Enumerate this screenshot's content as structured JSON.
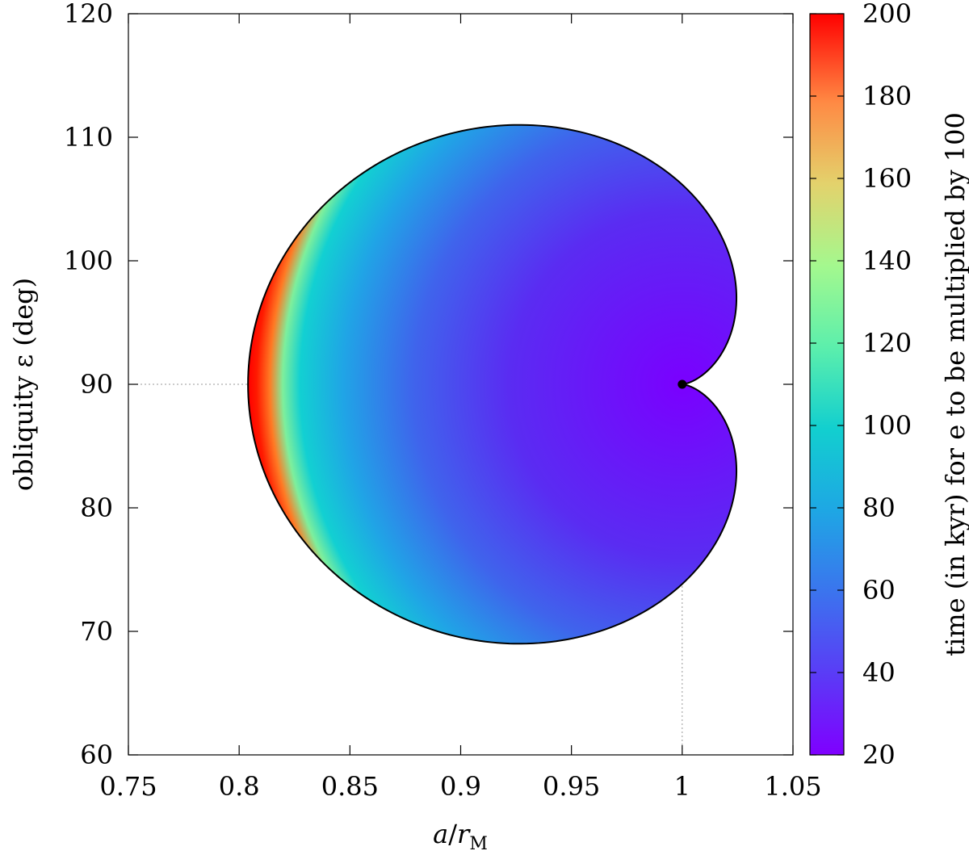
{
  "chart_data": {
    "type": "heatmap",
    "title": "",
    "xlabel": "a/r_M",
    "ylabel": "obliquity ε (deg)",
    "xlim": [
      0.75,
      1.05
    ],
    "ylim": [
      60,
      120
    ],
    "x_ticks": [
      0.75,
      0.8,
      0.85,
      0.9,
      0.95,
      1,
      1.05
    ],
    "x_tick_labels": [
      "0.75",
      "0.8",
      "0.85",
      "0.9",
      "0.95",
      "1",
      "1.05"
    ],
    "y_ticks": [
      60,
      70,
      80,
      90,
      100,
      110,
      120
    ],
    "y_tick_labels": [
      "60",
      "70",
      "80",
      "90",
      "100",
      "110",
      "120"
    ],
    "colorbar": {
      "label": "time (in kyr) for e to be multiplied by 100",
      "range": [
        20,
        200
      ],
      "ticks": [
        20,
        40,
        60,
        80,
        100,
        120,
        140,
        160,
        180,
        200
      ],
      "tick_labels": [
        "20",
        "40",
        "60",
        "80",
        "100",
        "120",
        "140",
        "160",
        "180",
        "200"
      ],
      "colormap": "rainbow"
    },
    "reference_lines": {
      "x": 1,
      "y": 90,
      "style": "dotted"
    },
    "marked_point": {
      "x": 1,
      "y": 90
    },
    "region": {
      "shape": "cardioid",
      "cusp": {
        "x": 1,
        "y": 90
      },
      "x_extent": [
        0.804,
        1.019
      ],
      "y_extent": [
        69,
        111
      ],
      "min_value": 20,
      "max_value": 200,
      "value_pattern": "minimum near cusp, maximum at boundary"
    }
  }
}
